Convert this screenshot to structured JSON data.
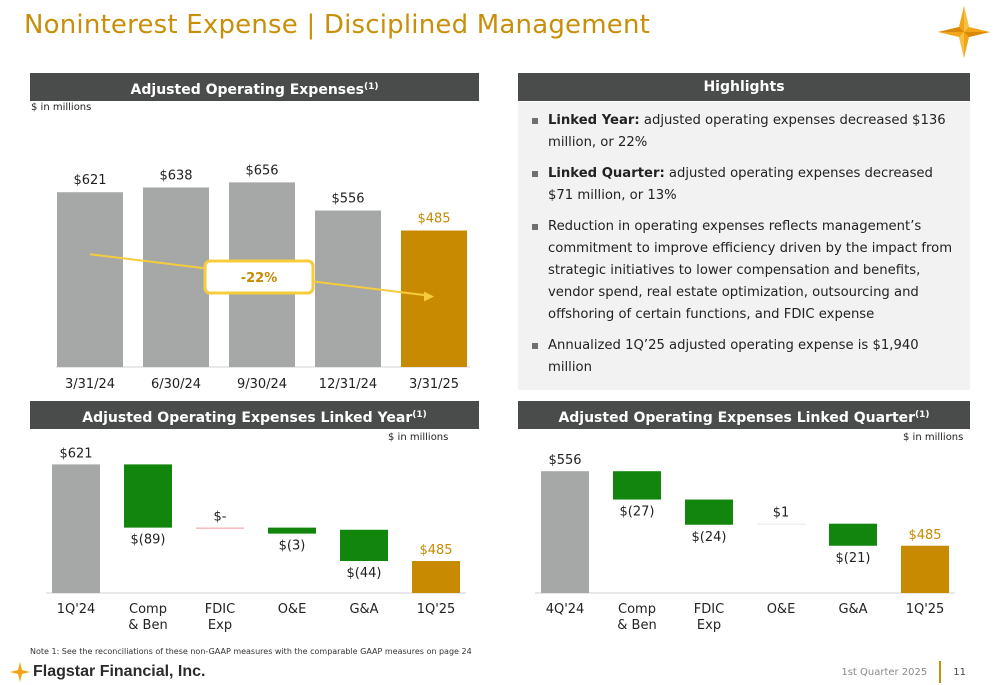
{
  "title": "Noninterest Expense | Disciplined Management",
  "left_top_header": {
    "text": "Adjusted Operating Expenses",
    "note": "(1)"
  },
  "left_top_units": "$ in millions",
  "right_top_header": "Highlights",
  "highlights": [
    {
      "bold": "Linked Year:",
      "text": " adjusted operating expenses decreased $136 million, or 22%"
    },
    {
      "bold": "Linked Quarter:",
      "text": " adjusted operating expenses decreased $71 million, or 13%"
    },
    {
      "bold": "",
      "text": "Reduction in operating expenses reflects management’s commitment to improve efficiency driven by the impact from strategic initiatives to lower compensation and benefits, vendor spend, real estate optimization, outsourcing and offshoring of certain functions, and FDIC expense"
    },
    {
      "bold": "",
      "text": "Annualized 1Q’25 adjusted operating expense is $1,940 million"
    }
  ],
  "left_bottom_header": {
    "text": "Adjusted Operating Expenses Linked Year",
    "note": "(1)"
  },
  "left_bottom_units": "$ in millions",
  "right_bottom_header": {
    "text": "Adjusted Operating Expenses Linked Quarter",
    "note": "(1)"
  },
  "right_bottom_units": "$ in millions",
  "colors": {
    "gray": "#a6a8a8",
    "gold": "#c88a00",
    "green": "#12850d",
    "red": "#f29a9a",
    "header": "#4a4b4b",
    "yellow": "#f5cd3c"
  },
  "chart_data": [
    {
      "type": "bar",
      "categories": [
        "3/31/24",
        "6/30/24",
        "9/30/24",
        "12/31/24",
        "3/31/25"
      ],
      "values": [
        621,
        638,
        656,
        556,
        485
      ],
      "labels": [
        "$621",
        "$638",
        "$656",
        "$556",
        "$485"
      ],
      "highlight_index": 4,
      "trend_label": "-22%",
      "ylim": [
        0,
        700
      ]
    },
    {
      "type": "waterfall",
      "categories": [
        "1Q'24",
        "Comp & Ben",
        "FDIC Exp",
        "O&E",
        "G&A",
        "1Q'25"
      ],
      "start": 621,
      "deltas": [
        -89,
        0,
        -3,
        -44
      ],
      "end": 485,
      "labels": [
        "$621",
        "$(89)",
        "$-",
        "$(3)",
        "$(44)",
        "$485"
      ],
      "ylim": [
        440,
        630
      ]
    },
    {
      "type": "waterfall",
      "categories": [
        "4Q'24",
        "Comp & Ben",
        "FDIC Exp",
        "O&E",
        "G&A",
        "1Q'25"
      ],
      "start": 556,
      "deltas": [
        -27,
        -24,
        1,
        -21
      ],
      "end": 485,
      "labels": [
        "$556",
        "$(27)",
        "$(24)",
        "$1",
        "$(21)",
        "$485"
      ],
      "ylim": [
        440,
        560
      ]
    }
  ],
  "footnote": "Note 1: See the reconciliations of these non-GAAP measures with the comparable GAAP measures on page 24",
  "footer_company": "Flagstar Financial, Inc.",
  "footer_period": "1st Quarter 2025",
  "footer_page": "11"
}
